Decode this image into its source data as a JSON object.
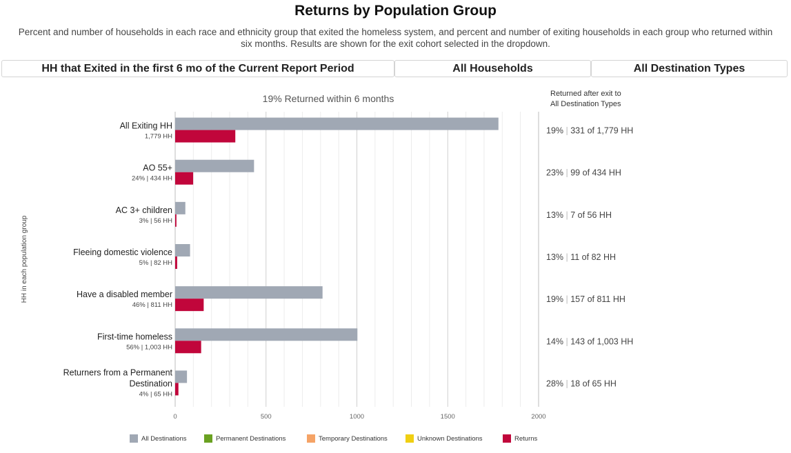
{
  "header": {
    "title": "Returns by Population Group",
    "subtitle": "Percent and number of households in each race and ethnicity group that exited the homeless system, and percent and number of exiting households in each group who returned within six months. Results are shown for the exit cohort selected in the dropdown."
  },
  "filters": {
    "cohort": "HH that Exited in the first 6 mo of the Current Report Period",
    "household_type": "All Households",
    "destination": "All Destination Types"
  },
  "chart_data": {
    "type": "bar",
    "orientation": "horizontal",
    "title": "19% Returned within 6 months",
    "ylabel": "HH in each population group",
    "xlim": [
      0,
      2000
    ],
    "xticks": [
      0,
      500,
      1000,
      1500,
      2000
    ],
    "grid": true,
    "right_header": "Returned after exit to All Destination Types",
    "categories": [
      {
        "label": "All Exiting HH",
        "sublabel": "1,779 HH"
      },
      {
        "label": "AO 55+",
        "sublabel": "24% | 434 HH"
      },
      {
        "label": "AC 3+ children",
        "sublabel": "3% | 56 HH"
      },
      {
        "label": "Fleeing domestic violence",
        "sublabel": "5% | 82 HH"
      },
      {
        "label": "Have a disabled member",
        "sublabel": "46% | 811 HH"
      },
      {
        "label": "First-time homeless",
        "sublabel": "56% | 1,003 HH"
      },
      {
        "label": "Returners from a Permanent Destination",
        "sublabel": "4% | 65 HH"
      }
    ],
    "series": [
      {
        "name": "All Destinations",
        "color": "#a0a8b4",
        "values": [
          1779,
          434,
          56,
          82,
          811,
          1003,
          65
        ]
      },
      {
        "name": "Returns",
        "color": "#c1063b",
        "values": [
          331,
          99,
          7,
          11,
          157,
          143,
          18
        ]
      }
    ],
    "right_labels": [
      {
        "pct": "19%",
        "count": "331 of 1,779 HH"
      },
      {
        "pct": "23%",
        "count": "99 of 434 HH"
      },
      {
        "pct": "13%",
        "count": "7 of 56 HH"
      },
      {
        "pct": "13%",
        "count": "11 of 82 HH"
      },
      {
        "pct": "19%",
        "count": "157 of 811 HH"
      },
      {
        "pct": "14%",
        "count": "143 of 1,003 HH"
      },
      {
        "pct": "28%",
        "count": "18 of 65 HH"
      }
    ],
    "legend": [
      {
        "name": "All Destinations",
        "color": "#a0a8b4"
      },
      {
        "name": "Permanent Destinations",
        "color": "#6aa121"
      },
      {
        "name": "Temporary Destinations",
        "color": "#f5a366"
      },
      {
        "name": "Unknown Destinations",
        "color": "#f0cf12"
      },
      {
        "name": "Returns",
        "color": "#c1063b"
      }
    ]
  }
}
